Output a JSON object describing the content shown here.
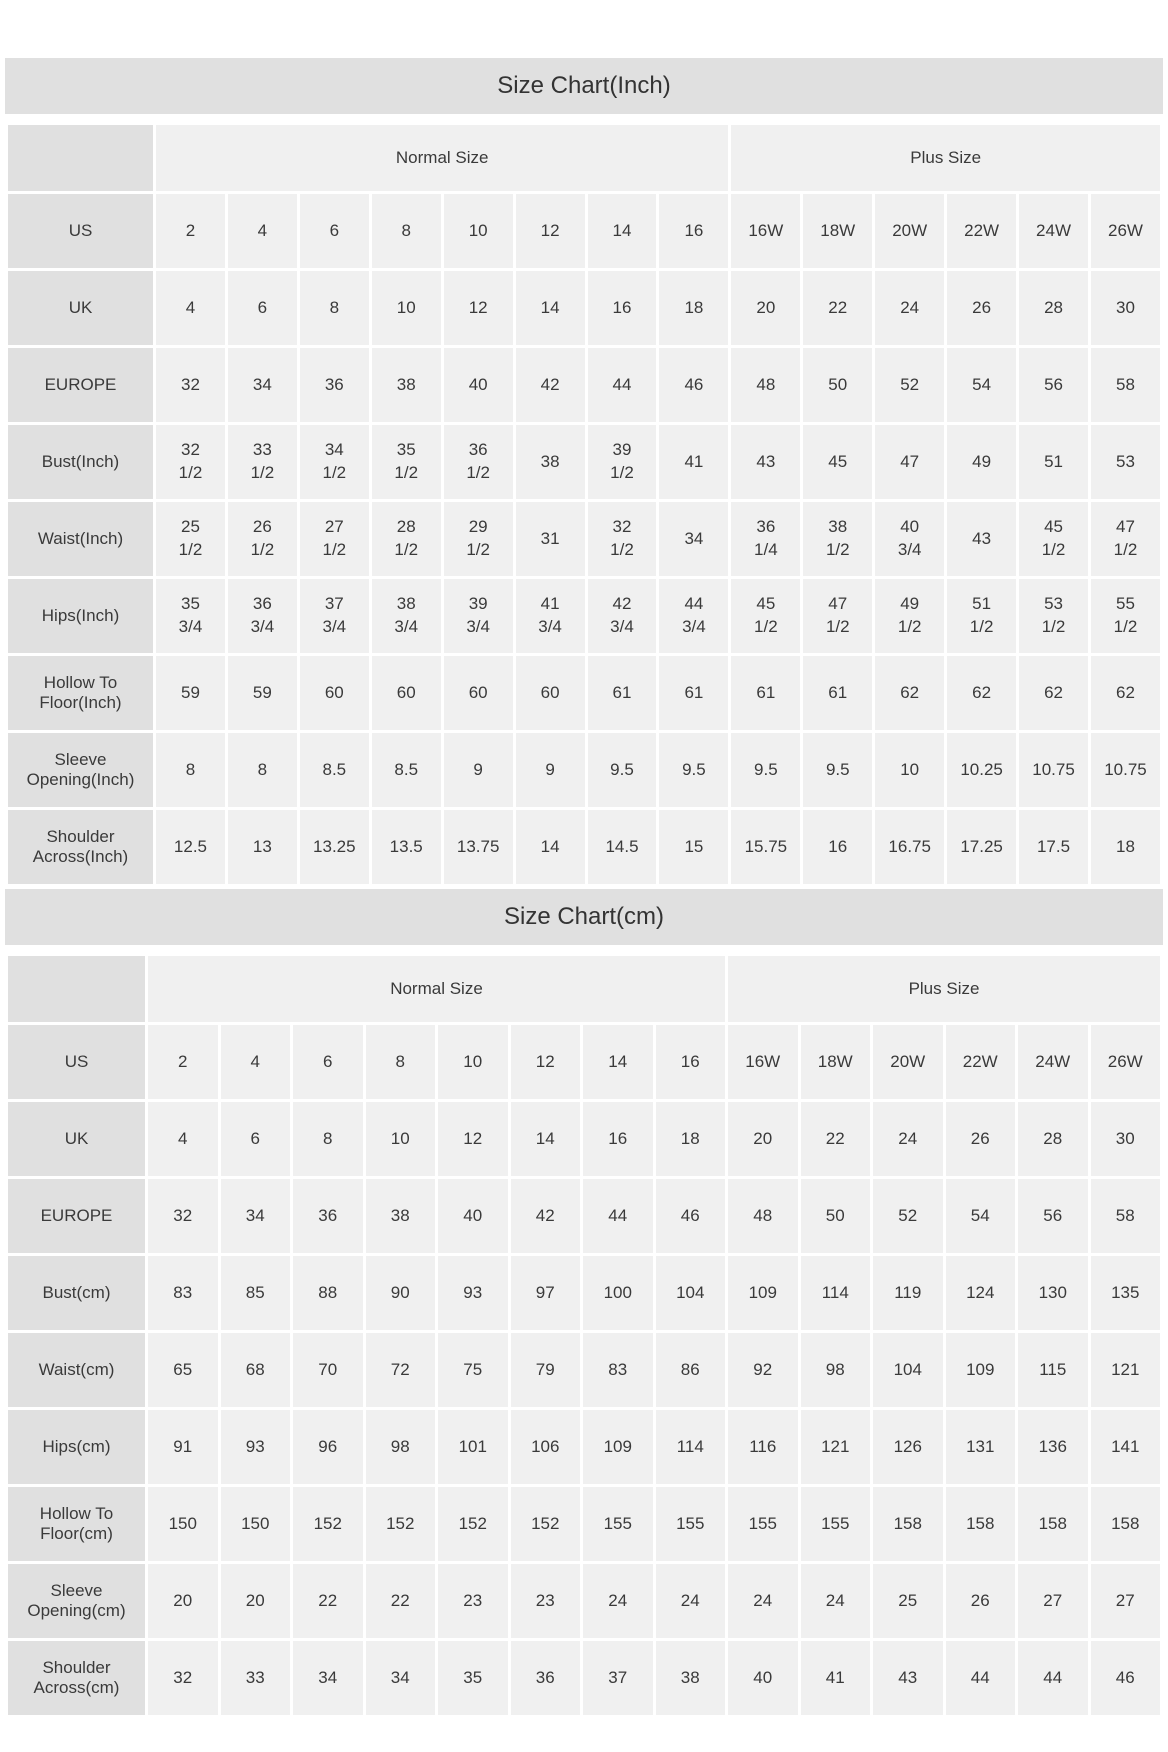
{
  "colors": {
    "page_background": "#ffffff",
    "title_band_background": "#e0e0e0",
    "label_cell_background": "#e0e0e0",
    "value_cell_background": "#f0f0f0",
    "text": "#3a3a3a"
  },
  "chart_data": [
    {
      "type": "table",
      "title": "Size Chart(Inch)",
      "column_groups": [
        {
          "label": "Normal Size",
          "span": 8
        },
        {
          "label": "Plus Size",
          "span": 6
        }
      ],
      "rows": [
        {
          "label": "US",
          "values": [
            "2",
            "4",
            "6",
            "8",
            "10",
            "12",
            "14",
            "16",
            "16W",
            "18W",
            "20W",
            "22W",
            "24W",
            "26W"
          ]
        },
        {
          "label": "UK",
          "values": [
            "4",
            "6",
            "8",
            "10",
            "12",
            "14",
            "16",
            "18",
            "20",
            "22",
            "24",
            "26",
            "28",
            "30"
          ]
        },
        {
          "label": "EUROPE",
          "values": [
            "32",
            "34",
            "36",
            "38",
            "40",
            "42",
            "44",
            "46",
            "48",
            "50",
            "52",
            "54",
            "56",
            "58"
          ]
        },
        {
          "label": "Bust(Inch)",
          "values": [
            "32\n1/2",
            "33\n1/2",
            "34\n1/2",
            "35\n1/2",
            "36\n1/2",
            "38",
            "39\n1/2",
            "41",
            "43",
            "45",
            "47",
            "49",
            "51",
            "53"
          ]
        },
        {
          "label": "Waist(Inch)",
          "values": [
            "25\n1/2",
            "26\n1/2",
            "27\n1/2",
            "28\n1/2",
            "29\n1/2",
            "31",
            "32\n1/2",
            "34",
            "36\n1/4",
            "38\n1/2",
            "40\n3/4",
            "43",
            "45\n1/2",
            "47\n1/2"
          ]
        },
        {
          "label": "Hips(Inch)",
          "values": [
            "35\n3/4",
            "36\n3/4",
            "37\n3/4",
            "38\n3/4",
            "39\n3/4",
            "41\n3/4",
            "42\n3/4",
            "44\n3/4",
            "45\n1/2",
            "47\n1/2",
            "49\n1/2",
            "51\n1/2",
            "53\n1/2",
            "55\n1/2"
          ]
        },
        {
          "label": "Hollow To Floor(Inch)",
          "values": [
            "59",
            "59",
            "60",
            "60",
            "60",
            "60",
            "61",
            "61",
            "61",
            "61",
            "62",
            "62",
            "62",
            "62"
          ]
        },
        {
          "label": "Sleeve Opening(Inch)",
          "values": [
            "8",
            "8",
            "8.5",
            "8.5",
            "9",
            "9",
            "9.5",
            "9.5",
            "9.5",
            "9.5",
            "10",
            "10.25",
            "10.75",
            "10.75"
          ]
        },
        {
          "label": "Shoulder Across(Inch)",
          "values": [
            "12.5",
            "13",
            "13.25",
            "13.5",
            "13.75",
            "14",
            "14.5",
            "15",
            "15.75",
            "16",
            "16.75",
            "17.25",
            "17.5",
            "18"
          ]
        }
      ]
    },
    {
      "type": "table",
      "title": "Size Chart(cm)",
      "column_groups": [
        {
          "label": "Normal Size",
          "span": 8
        },
        {
          "label": "Plus Size",
          "span": 6
        }
      ],
      "rows": [
        {
          "label": "US",
          "values": [
            "2",
            "4",
            "6",
            "8",
            "10",
            "12",
            "14",
            "16",
            "16W",
            "18W",
            "20W",
            "22W",
            "24W",
            "26W"
          ]
        },
        {
          "label": "UK",
          "values": [
            "4",
            "6",
            "8",
            "10",
            "12",
            "14",
            "16",
            "18",
            "20",
            "22",
            "24",
            "26",
            "28",
            "30"
          ]
        },
        {
          "label": "EUROPE",
          "values": [
            "32",
            "34",
            "36",
            "38",
            "40",
            "42",
            "44",
            "46",
            "48",
            "50",
            "52",
            "54",
            "56",
            "58"
          ]
        },
        {
          "label": "Bust(cm)",
          "values": [
            "83",
            "85",
            "88",
            "90",
            "93",
            "97",
            "100",
            "104",
            "109",
            "114",
            "119",
            "124",
            "130",
            "135"
          ]
        },
        {
          "label": "Waist(cm)",
          "values": [
            "65",
            "68",
            "70",
            "72",
            "75",
            "79",
            "83",
            "86",
            "92",
            "98",
            "104",
            "109",
            "115",
            "121"
          ]
        },
        {
          "label": "Hips(cm)",
          "values": [
            "91",
            "93",
            "96",
            "98",
            "101",
            "106",
            "109",
            "114",
            "116",
            "121",
            "126",
            "131",
            "136",
            "141"
          ]
        },
        {
          "label": "Hollow To Floor(cm)",
          "values": [
            "150",
            "150",
            "152",
            "152",
            "152",
            "152",
            "155",
            "155",
            "155",
            "155",
            "158",
            "158",
            "158",
            "158"
          ]
        },
        {
          "label": "Sleeve Opening(cm)",
          "values": [
            "20",
            "20",
            "22",
            "22",
            "23",
            "23",
            "24",
            "24",
            "24",
            "24",
            "25",
            "26",
            "27",
            "27"
          ]
        },
        {
          "label": "Shoulder Across(cm)",
          "values": [
            "32",
            "33",
            "34",
            "34",
            "35",
            "36",
            "37",
            "38",
            "40",
            "41",
            "43",
            "44",
            "44",
            "46"
          ]
        }
      ]
    }
  ]
}
